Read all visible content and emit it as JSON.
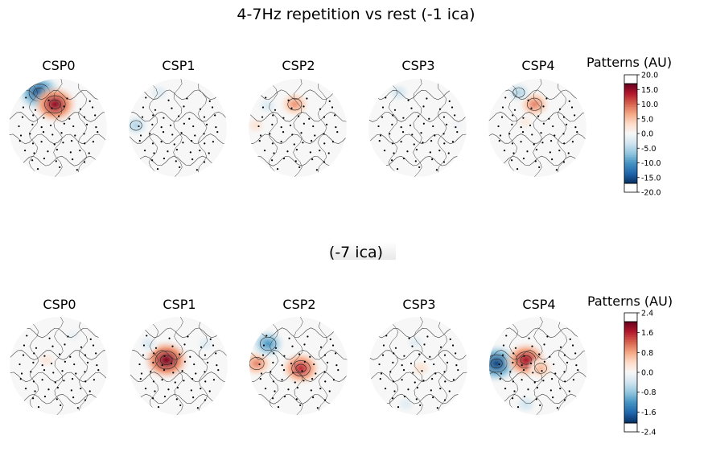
{
  "figure": {
    "title_top": "4-7Hz repetition vs rest (-1 ica)",
    "title_bottom": "(-7 ica)"
  },
  "chart_data": [
    {
      "type": "heatmap",
      "subtype": "topomap",
      "title": "4-7Hz repetition vs rest (-1 ica)",
      "panels": [
        {
          "label": "CSP0",
          "blobs": [
            {
              "at": "frontal-left",
              "value": -18
            },
            {
              "at": "frontal-centre",
              "value": 18
            }
          ]
        },
        {
          "label": "CSP1",
          "blobs": [
            {
              "at": "left-temporal",
              "value": -6
            },
            {
              "at": "frontal-left",
              "value": -3
            }
          ]
        },
        {
          "label": "CSP2",
          "blobs": [
            {
              "at": "frontal-centre",
              "value": 9
            },
            {
              "at": "left-frontal",
              "value": -3
            },
            {
              "at": "left-temporal",
              "value": 3
            }
          ]
        },
        {
          "label": "CSP3",
          "blobs": [
            {
              "at": "frontal-left",
              "value": -4
            },
            {
              "at": "right-temporal",
              "value": -1
            }
          ]
        },
        {
          "label": "CSP4",
          "blobs": [
            {
              "at": "frontal-centre",
              "value": 10
            },
            {
              "at": "frontal-left",
              "value": -6
            },
            {
              "at": "left-centre",
              "value": 2
            }
          ]
        }
      ],
      "colorbar": {
        "label": "Patterns (AU)",
        "range": [
          -20,
          20
        ],
        "ticks": [
          "20.0",
          "15.0",
          "10.0",
          "5.0",
          "0.0",
          "-5.0",
          "-10.0",
          "-15.0",
          "-20.0"
        ],
        "colormap": "RdBu_r"
      }
    },
    {
      "type": "heatmap",
      "subtype": "topomap",
      "title": "(-7 ica)",
      "panels": [
        {
          "label": "CSP0",
          "blobs": [
            {
              "at": "left-centre",
              "value": 0.3
            },
            {
              "at": "frontal-right",
              "value": -0.2
            }
          ]
        },
        {
          "label": "CSP1",
          "blobs": [
            {
              "at": "left-centre",
              "value": 2.3
            },
            {
              "at": "left-frontal",
              "value": -0.4
            },
            {
              "at": "right-frontal",
              "value": -0.3
            }
          ]
        },
        {
          "label": "CSP2",
          "blobs": [
            {
              "at": "centre",
              "value": 1.8
            },
            {
              "at": "left-temporal",
              "value": 1.2
            },
            {
              "at": "left-frontal",
              "value": -1.4
            }
          ]
        },
        {
          "label": "CSP3",
          "blobs": [
            {
              "at": "centre",
              "value": 0.4
            },
            {
              "at": "frontal-centre",
              "value": -0.3
            },
            {
              "at": "left-occipital",
              "value": -0.3
            }
          ]
        },
        {
          "label": "CSP4",
          "blobs": [
            {
              "at": "left-temporal",
              "value": -2.2
            },
            {
              "at": "left-centre",
              "value": 2.0
            },
            {
              "at": "centre",
              "value": 0.8
            },
            {
              "at": "left-occipital",
              "value": -0.5
            }
          ]
        }
      ],
      "colorbar": {
        "label": "Patterns (AU)",
        "range": [
          -2.4,
          2.4
        ],
        "ticks": [
          "2.4",
          "1.6",
          "0.8",
          "0.0",
          "-0.8",
          "-1.6",
          "-2.4"
        ],
        "colormap": "RdBu_r"
      }
    }
  ]
}
